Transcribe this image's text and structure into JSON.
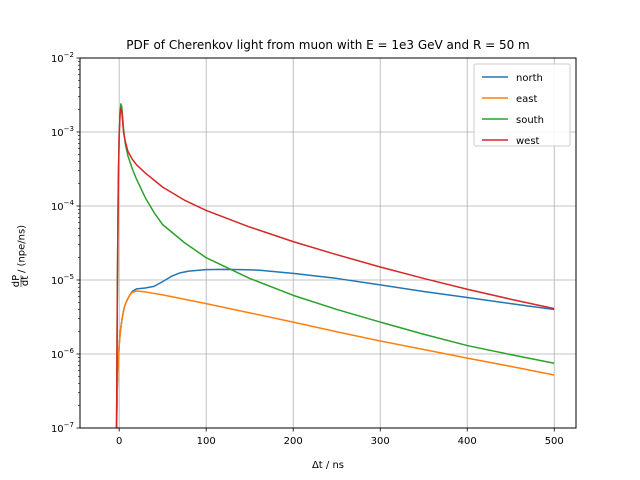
{
  "chart_data": {
    "type": "line",
    "title": "PDF of Cherenkov light from muon with E = 1e3 GeV and R = 50 m",
    "xlabel": "Δt / ns",
    "ylabel": "dP/dt / (npe/ns)",
    "ylabel_parts": {
      "num": "dP",
      "den": "dt",
      "rest": " / (npe/ns)"
    },
    "xlim": [
      -45,
      525
    ],
    "ylim": [
      1e-07,
      0.01
    ],
    "yscale": "log",
    "grid": true,
    "legend_position": "top-right",
    "x_ticks": [
      0,
      100,
      200,
      300,
      400,
      500
    ],
    "x_tick_labels": [
      "0",
      "100",
      "200",
      "300",
      "400",
      "500"
    ],
    "y_ticks": [
      1e-07,
      1e-06,
      1e-05,
      0.0001,
      0.001,
      0.01
    ],
    "y_tick_labels": [
      {
        "base": "10",
        "exp": "−7"
      },
      {
        "base": "10",
        "exp": "−6"
      },
      {
        "base": "10",
        "exp": "−5"
      },
      {
        "base": "10",
        "exp": "−4"
      },
      {
        "base": "10",
        "exp": "−3"
      },
      {
        "base": "10",
        "exp": "−2"
      }
    ],
    "series": [
      {
        "name": "north",
        "color": "#1f77b4",
        "x": [
          -3,
          -2,
          -1,
          0,
          1,
          2,
          3,
          4,
          5,
          6,
          8,
          10,
          12,
          15,
          20,
          30,
          40,
          50,
          60,
          70,
          80,
          100,
          120,
          140,
          160,
          200,
          250,
          300,
          350,
          400,
          450,
          500
        ],
        "y": [
          1e-07,
          4e-07,
          8e-07,
          1.3e-06,
          1.8e-06,
          2.3e-06,
          2.8e-06,
          3.3e-06,
          3.8e-06,
          4.3e-06,
          5e-06,
          5.6e-06,
          6.2e-06,
          7e-06,
          7.6e-06,
          7.8e-06,
          8.2e-06,
          9.5e-06,
          1.12e-05,
          1.25e-05,
          1.32e-05,
          1.38e-05,
          1.39e-05,
          1.38e-05,
          1.36e-05,
          1.23e-05,
          1.05e-05,
          8.6e-06,
          7e-06,
          5.8e-06,
          4.8e-06,
          4e-06
        ]
      },
      {
        "name": "east",
        "color": "#ff7f0e",
        "x": [
          -3,
          -2,
          -1,
          0,
          1,
          2,
          3,
          4,
          5,
          6,
          8,
          10,
          12,
          15,
          20,
          30,
          50,
          100,
          150,
          200,
          250,
          300,
          350,
          400,
          450,
          500
        ],
        "y": [
          1e-07,
          4e-07,
          8e-07,
          1.3e-06,
          1.8e-06,
          2.3e-06,
          2.8e-06,
          3.3e-06,
          3.8e-06,
          4.3e-06,
          5e-06,
          5.6e-06,
          6.2e-06,
          6.8e-06,
          7.1e-06,
          6.9e-06,
          6.3e-06,
          4.8e-06,
          3.6e-06,
          2.7e-06,
          2e-06,
          1.5e-06,
          1.15e-06,
          8.8e-07,
          6.8e-07,
          5.2e-07
        ]
      },
      {
        "name": "south",
        "color": "#2ca02c",
        "x": [
          -3,
          -2,
          -1,
          0,
          1,
          2,
          3,
          4,
          5,
          7,
          10,
          15,
          20,
          30,
          40,
          50,
          75,
          100,
          150,
          200,
          250,
          300,
          350,
          400,
          450,
          500
        ],
        "y": [
          1e-07,
          1e-05,
          0.0002,
          0.0009,
          0.0018,
          0.0024,
          0.0022,
          0.0016,
          0.0011,
          0.0007,
          0.00048,
          0.00032,
          0.00023,
          0.00013,
          8.2e-05,
          5.6e-05,
          3.2e-05,
          2e-05,
          1.05e-05,
          6.2e-06,
          4e-06,
          2.7e-06,
          1.85e-06,
          1.3e-06,
          9.8e-07,
          7.5e-07
        ]
      },
      {
        "name": "west",
        "color": "#d62728",
        "x": [
          -3,
          -2,
          -1,
          0,
          1,
          2,
          3,
          4,
          5,
          7,
          10,
          15,
          20,
          30,
          50,
          75,
          100,
          150,
          200,
          250,
          300,
          350,
          400,
          450,
          500
        ],
        "y": [
          1e-07,
          1e-05,
          0.0002,
          0.0009,
          0.0017,
          0.0021,
          0.0019,
          0.0014,
          0.001,
          0.00075,
          0.00055,
          0.00043,
          0.00036,
          0.00028,
          0.00018,
          0.00012,
          8.7e-05,
          5.2e-05,
          3.3e-05,
          2.2e-05,
          1.5e-05,
          1.05e-05,
          7.5e-06,
          5.5e-06,
          4.1e-06
        ]
      }
    ]
  }
}
